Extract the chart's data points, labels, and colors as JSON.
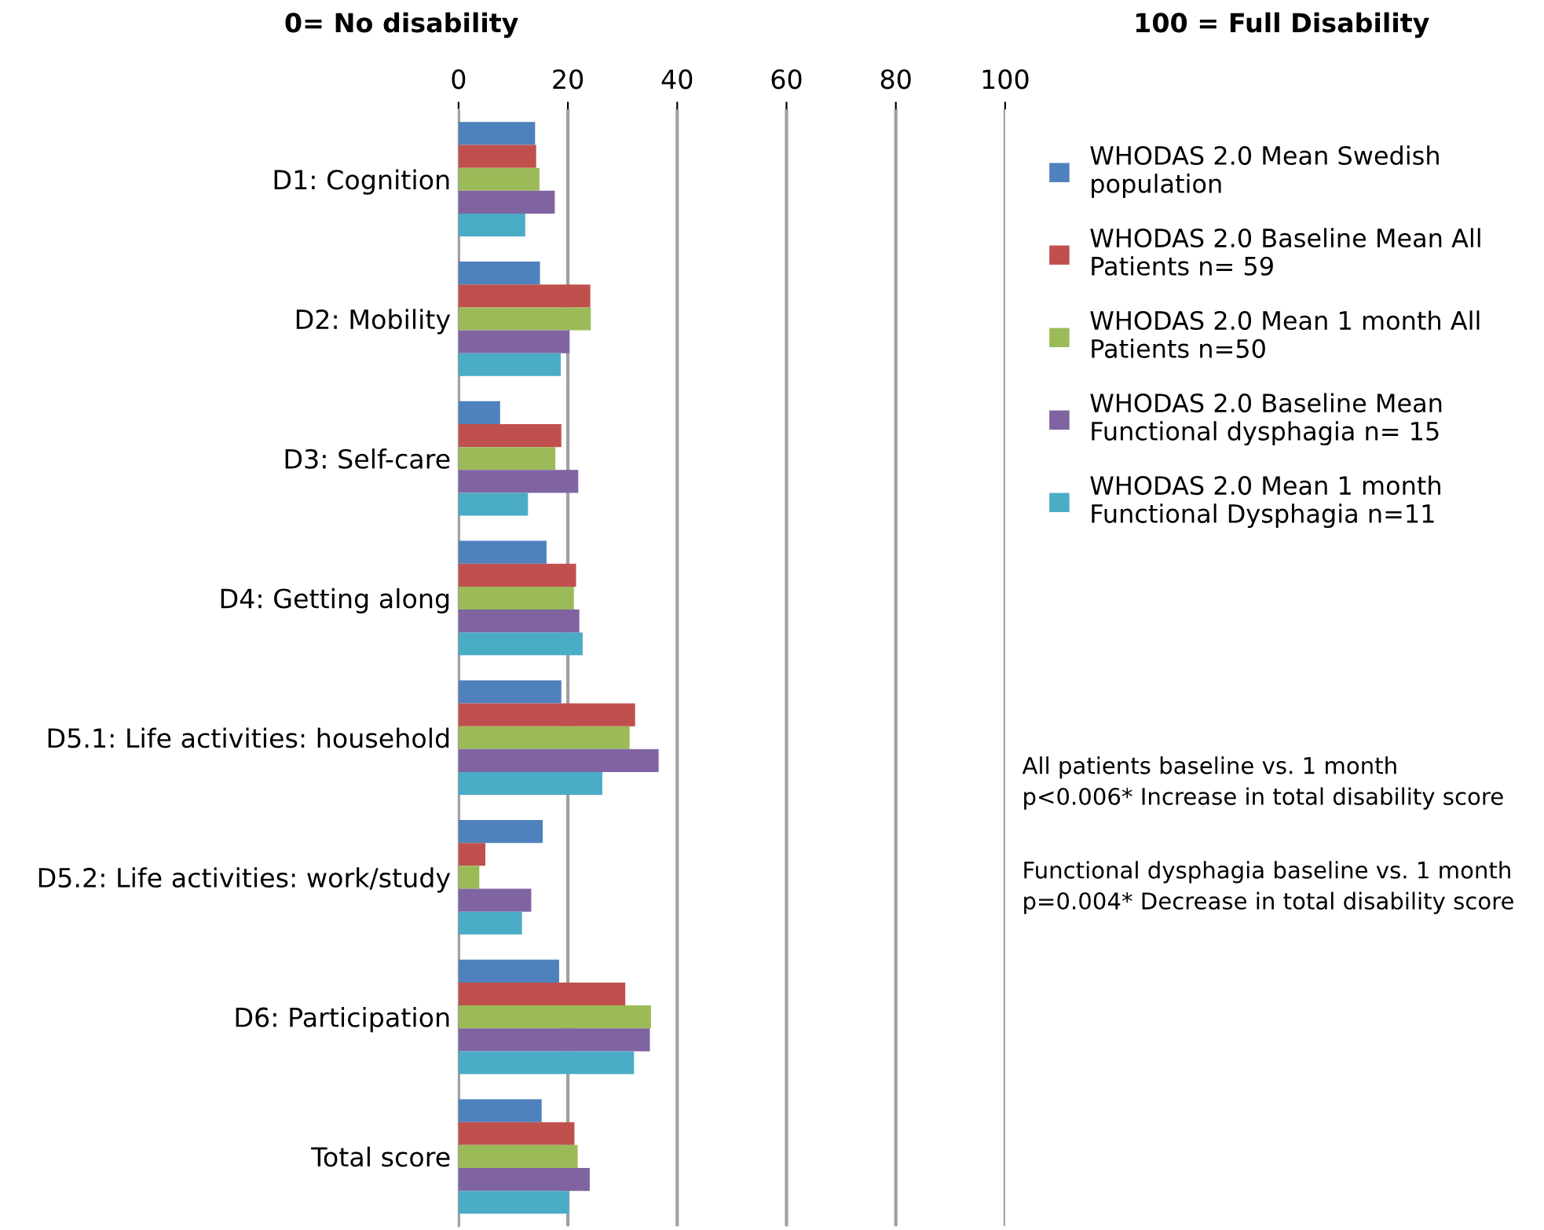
{
  "chart_data": {
    "type": "bar",
    "orientation": "horizontal",
    "categories": [
      "D1: Cognition",
      "D2: Mobility",
      "D3: Self-care",
      "D4: Getting along",
      "D5.1: Life activities: household",
      "D5.2: Life activities: work/study",
      "D6: Participation",
      "Total score"
    ],
    "series": [
      {
        "name": "WHODAS 2.0 Mean Swedish population",
        "color": "#4f81bd",
        "values": [
          14.0,
          14.9,
          7.6,
          16.1,
          18.8,
          15.4,
          18.4,
          15.2
        ]
      },
      {
        "name": "WHODAS 2.0 Baseline Mean All Patients n= 59",
        "color": "#c0504d",
        "values": [
          14.2,
          24.1,
          18.8,
          21.5,
          32.3,
          4.9,
          30.5,
          21.2
        ]
      },
      {
        "name": "WHODAS 2.0 Mean 1 month All Patients n=50",
        "color": "#9bbb59",
        "values": [
          14.8,
          24.2,
          17.7,
          21.1,
          31.3,
          3.8,
          35.2,
          21.8
        ]
      },
      {
        "name": "WHODAS 2.0 Baseline Mean Functional dysphagia n= 15",
        "color": "#8064a2",
        "values": [
          17.6,
          20.3,
          21.9,
          22.1,
          36.6,
          13.3,
          35.0,
          24.0
        ]
      },
      {
        "name": "WHODAS 2.0 Mean 1 month Functional Dysphagia n=11",
        "color": "#4bacc6",
        "values": [
          12.2,
          18.7,
          12.7,
          22.7,
          26.3,
          11.6,
          32.1,
          20.2
        ]
      }
    ],
    "xlim": [
      0,
      100
    ],
    "xticks": [
      0,
      20,
      40,
      60,
      80,
      100
    ],
    "grid": "x",
    "legend": "right",
    "annotations": [
      "0= No disability",
      "100 = Full Disability",
      "All patients baseline vs. 1 month\np<0.006* Increase in total disability score",
      "Functional dysphagia baseline vs. 1 month\np=0.004* Decrease in total disability score"
    ]
  }
}
